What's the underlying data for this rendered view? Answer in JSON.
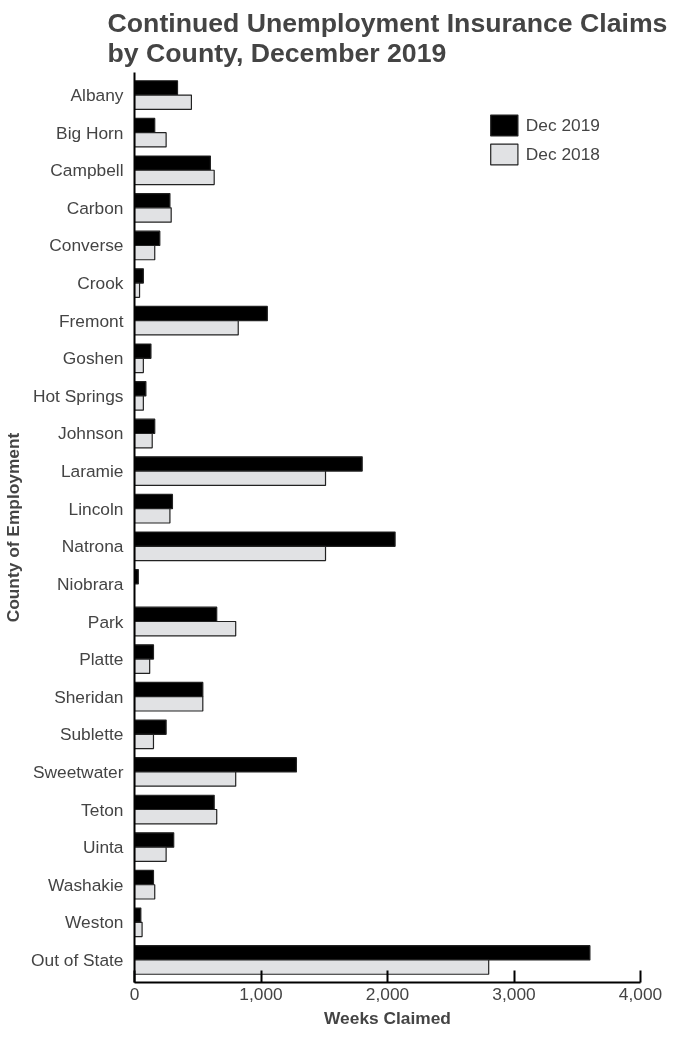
{
  "chart_data": {
    "type": "bar",
    "orientation": "horizontal",
    "title": "Continued Unemployment Insurance Claims by County, December 2019",
    "xlabel": "Weeks Claimed",
    "ylabel": "County of Employment",
    "categories": [
      "Albany",
      "Big Horn",
      "Campbell",
      "Carbon",
      "Converse",
      "Crook",
      "Fremont",
      "Goshen",
      "Hot Springs",
      "Johnson",
      "Laramie",
      "Lincoln",
      "Natrona",
      "Niobrara",
      "Park",
      "Platte",
      "Sheridan",
      "Sublette",
      "Sweetwater",
      "Teton",
      "Uinta",
      "Washakie",
      "Weston",
      "Out of State"
    ],
    "series": [
      {
        "name": "Dec 2019",
        "color": "#000000",
        "values": [
          340,
          160,
          600,
          280,
          200,
          70,
          1050,
          130,
          90,
          160,
          1800,
          300,
          2060,
          30,
          650,
          150,
          540,
          250,
          1280,
          630,
          310,
          150,
          50,
          3600
        ]
      },
      {
        "name": "Dec 2018",
        "color": "#e1e2e4",
        "values": [
          450,
          250,
          630,
          290,
          160,
          40,
          820,
          70,
          70,
          140,
          1510,
          280,
          1510,
          null,
          800,
          120,
          540,
          150,
          800,
          650,
          250,
          160,
          60,
          2800
        ]
      }
    ],
    "xlim": [
      0,
      4000
    ],
    "xticks": [
      0,
      {
        "value": 1000,
        "label": "1,000"
      },
      {
        "value": 2000,
        "label": "2,000"
      },
      {
        "value": 3000,
        "label": "3,000"
      },
      {
        "value": 4000,
        "label": "4,000"
      }
    ],
    "legend": "top right",
    "grid": false
  }
}
